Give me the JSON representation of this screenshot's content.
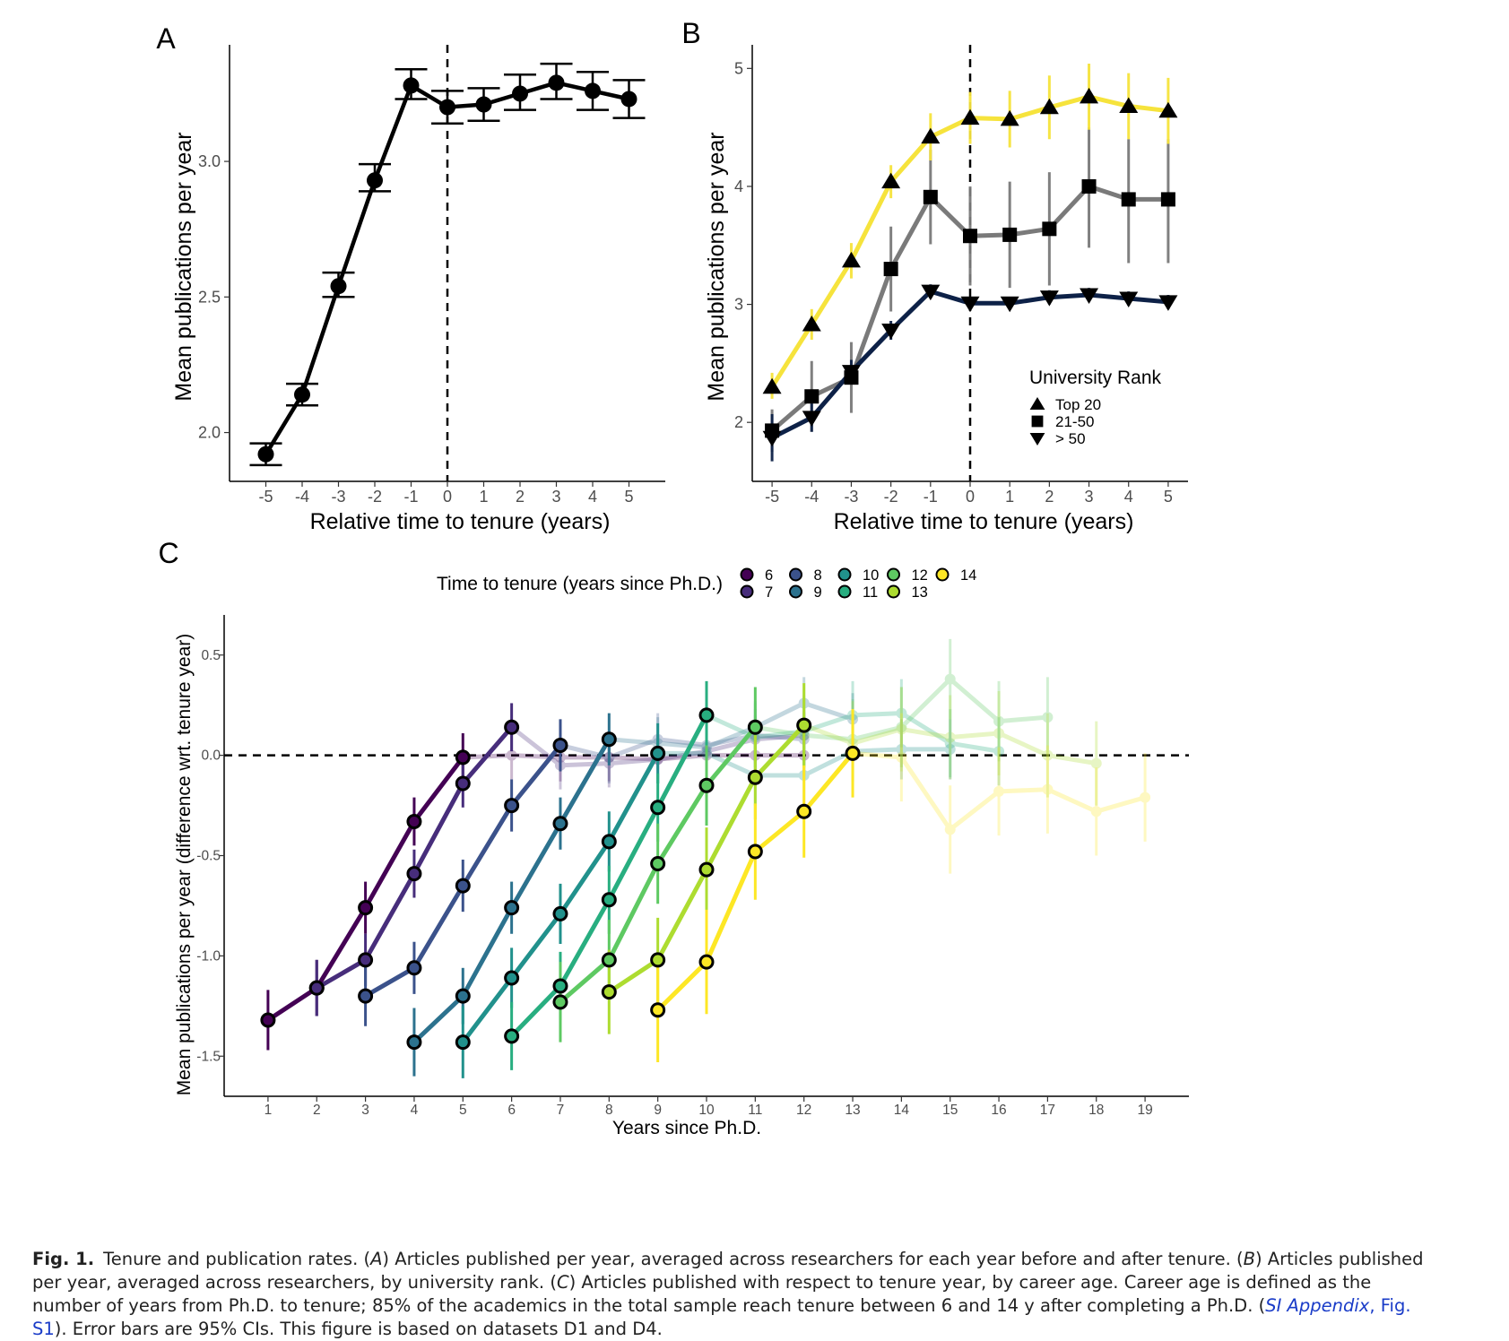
{
  "panels": {
    "A": {
      "label": "A",
      "xlabel": "Relative time to tenure (years)",
      "ylabel": "Mean publications per year",
      "xticks": [
        "-5",
        "-4",
        "-3",
        "-2",
        "-1",
        "0",
        "1",
        "2",
        "3",
        "4",
        "5"
      ],
      "yticks": [
        "2.0",
        "2.5",
        "3.0"
      ]
    },
    "B": {
      "label": "B",
      "xlabel": "Relative time to tenure (years)",
      "ylabel": "Mean publications per year",
      "xticks": [
        "-5",
        "-4",
        "-3",
        "-2",
        "-1",
        "0",
        "1",
        "2",
        "3",
        "4",
        "5"
      ],
      "yticks": [
        "2",
        "3",
        "4",
        "5"
      ],
      "legend_title": "University Rank",
      "legend_items": [
        "Top 20",
        "21-50",
        "> 50"
      ]
    },
    "C": {
      "label": "C",
      "xlabel": "Years since Ph.D.",
      "ylabel": "Mean publications per year (difference wrt. tenure year)",
      "xticks": [
        "1",
        "2",
        "3",
        "4",
        "5",
        "6",
        "7",
        "8",
        "9",
        "10",
        "11",
        "12",
        "13",
        "14",
        "15",
        "16",
        "17",
        "18",
        "19"
      ],
      "yticks": [
        "0.5",
        "0.0",
        "-0.5",
        "-1.0",
        "-1.5"
      ],
      "legend_title": "Time to tenure (years since Ph.D.)"
    }
  },
  "colors": {
    "black": "#000000",
    "top20": "#f6e33c",
    "rank21_50": "#7a7a7a",
    "rank_gt50": "#0d2147",
    "ttt": {
      "6": "#440154",
      "7": "#472d7b",
      "8": "#3b528b",
      "9": "#2c728e",
      "10": "#21918c",
      "11": "#28ae80",
      "12": "#5ec962",
      "13": "#addc30",
      "14": "#fde725"
    }
  },
  "chart_data": [
    {
      "panel": "A",
      "type": "line",
      "title": "",
      "xlabel": "Relative time to tenure (years)",
      "ylabel": "Mean publications per year",
      "xlim": [
        -6,
        6
      ],
      "ylim": [
        1.82,
        3.43
      ],
      "x": [
        -5,
        -4,
        -3,
        -2,
        -1,
        0,
        1,
        2,
        3,
        4,
        5
      ],
      "series": [
        {
          "name": "All",
          "values": [
            1.92,
            2.14,
            2.54,
            2.93,
            3.28,
            3.2,
            3.21,
            3.25,
            3.29,
            3.26,
            3.23
          ],
          "ci_low": [
            1.88,
            2.1,
            2.5,
            2.89,
            3.23,
            3.14,
            3.15,
            3.19,
            3.23,
            3.19,
            3.16
          ],
          "ci_high": [
            1.96,
            2.18,
            2.59,
            2.99,
            3.34,
            3.26,
            3.27,
            3.32,
            3.36,
            3.33,
            3.3
          ]
        }
      ],
      "vline": 0
    },
    {
      "panel": "B",
      "type": "line",
      "title": "",
      "xlabel": "Relative time to tenure (years)",
      "ylabel": "Mean publications per year",
      "xlim": [
        -5.5,
        5.5
      ],
      "ylim": [
        1.5,
        5.2
      ],
      "x": [
        -5,
        -4,
        -3,
        -2,
        -1,
        0,
        1,
        2,
        3,
        4,
        5
      ],
      "legend_title": "University Rank",
      "series": [
        {
          "name": "Top 20",
          "marker": "triangle-up",
          "values": [
            2.3,
            2.83,
            3.37,
            4.04,
            4.42,
            4.58,
            4.57,
            4.67,
            4.76,
            4.68,
            4.64
          ],
          "ci_low": [
            2.2,
            2.7,
            3.22,
            3.9,
            4.22,
            4.36,
            4.33,
            4.4,
            4.48,
            4.4,
            4.36
          ],
          "ci_high": [
            2.42,
            2.96,
            3.52,
            4.18,
            4.62,
            4.8,
            4.81,
            4.94,
            5.04,
            4.96,
            4.92
          ]
        },
        {
          "name": "21-50",
          "marker": "square",
          "values": [
            1.93,
            2.22,
            2.38,
            3.3,
            3.91,
            3.58,
            3.59,
            3.64,
            4.0,
            3.89,
            3.89
          ],
          "ci_low": [
            1.75,
            1.92,
            2.08,
            2.94,
            3.51,
            3.16,
            3.14,
            3.16,
            3.48,
            3.35,
            3.35
          ],
          "ci_high": [
            2.11,
            2.52,
            2.68,
            3.66,
            4.31,
            4.0,
            4.04,
            4.12,
            4.5,
            4.4,
            4.4
          ]
        },
        {
          "name": "> 50",
          "marker": "triangle-down",
          "values": [
            1.87,
            2.04,
            2.43,
            2.78,
            3.11,
            3.01,
            3.01,
            3.06,
            3.08,
            3.05,
            3.02
          ],
          "ci_low": [
            1.67,
            1.92,
            2.33,
            2.7,
            3.05,
            2.96,
            2.96,
            3.0,
            3.02,
            2.99,
            2.96
          ],
          "ci_high": [
            2.07,
            2.16,
            2.53,
            2.86,
            3.17,
            3.06,
            3.06,
            3.12,
            3.14,
            3.11,
            3.08
          ]
        }
      ],
      "vline": 0
    },
    {
      "panel": "C",
      "type": "line",
      "title": "",
      "xlabel": "Years since Ph.D.",
      "ylabel": "Mean publications per year (difference wrt. tenure year)",
      "xlim": [
        0.1,
        19.9
      ],
      "ylim": [
        -1.7,
        0.7
      ],
      "legend_title": "Time to tenure (years since Ph.D.)",
      "hline": 0,
      "series": [
        {
          "name": "6",
          "pre_x": [
            1,
            2,
            3,
            4,
            5
          ],
          "pre": [
            -1.32,
            -1.16,
            -0.76,
            -0.33,
            -0.01
          ],
          "ci": [
            0.15,
            0.14,
            0.13,
            0.12,
            0.12
          ],
          "post_x": [
            6,
            7,
            8,
            9,
            10,
            11,
            12
          ],
          "post": [
            0.0,
            -0.01,
            -0.01,
            -0.02,
            0.0,
            0.0,
            0.0
          ]
        },
        {
          "name": "7",
          "pre_x": [
            2,
            3,
            4,
            5,
            6
          ],
          "pre": [
            -1.16,
            -1.02,
            -0.59,
            -0.14,
            0.14
          ],
          "ci": [
            0.14,
            0.13,
            0.12,
            0.12,
            0.12
          ],
          "post_x": [
            7,
            8,
            9,
            10,
            11,
            12
          ],
          "post": [
            -0.05,
            -0.04,
            -0.02,
            0.02,
            0.08,
            0.1
          ]
        },
        {
          "name": "8",
          "pre_x": [
            3,
            4,
            5,
            6,
            7
          ],
          "pre": [
            -1.2,
            -1.06,
            -0.65,
            -0.25,
            0.05
          ],
          "ci": [
            0.15,
            0.13,
            0.13,
            0.13,
            0.13
          ],
          "post_x": [
            8,
            9,
            10,
            11,
            12
          ],
          "post": [
            -0.01,
            0.08,
            0.05,
            0.1,
            0.08
          ]
        },
        {
          "name": "9",
          "pre_x": [
            4,
            5,
            6,
            7,
            8
          ],
          "pre": [
            -1.43,
            -1.2,
            -0.76,
            -0.34,
            0.08
          ],
          "ci": [
            0.17,
            0.14,
            0.13,
            0.13,
            0.13
          ],
          "post_x": [
            9,
            10,
            11,
            12,
            13
          ],
          "post": [
            0.06,
            0.04,
            0.14,
            0.26,
            0.18
          ]
        },
        {
          "name": "10",
          "pre_x": [
            5,
            6,
            7,
            8,
            9
          ],
          "pre": [
            -1.43,
            -1.11,
            -0.79,
            -0.43,
            0.01
          ],
          "ci": [
            0.18,
            0.15,
            0.15,
            0.15,
            0.15
          ],
          "post_x": [
            10,
            11,
            12,
            13,
            14,
            15
          ],
          "post": [
            0.01,
            -0.1,
            -0.1,
            0.02,
            0.03,
            0.03
          ]
        },
        {
          "name": "11",
          "pre_x": [
            6,
            7,
            8,
            9,
            10
          ],
          "pre": [
            -1.4,
            -1.15,
            -0.72,
            -0.26,
            0.2
          ],
          "ci": [
            0.17,
            0.17,
            0.17,
            0.17,
            0.17
          ],
          "post_x": [
            11,
            12,
            13,
            14,
            15,
            16
          ],
          "post": [
            0.09,
            0.12,
            0.2,
            0.21,
            0.06,
            0.02
          ]
        },
        {
          "name": "12",
          "pre_x": [
            7,
            8,
            9,
            10,
            11
          ],
          "pre": [
            -1.23,
            -1.02,
            -0.54,
            -0.15,
            0.14
          ],
          "ci": [
            0.2,
            0.2,
            0.2,
            0.2,
            0.2
          ],
          "post_x": [
            12,
            13,
            14,
            15,
            16,
            17
          ],
          "post": [
            0.1,
            0.08,
            0.14,
            0.38,
            0.17,
            0.19
          ]
        },
        {
          "name": "13",
          "pre_x": [
            8,
            9,
            10,
            11,
            12
          ],
          "pre": [
            -1.18,
            -1.02,
            -0.57,
            -0.11,
            0.15
          ],
          "ci": [
            0.21,
            0.21,
            0.21,
            0.21,
            0.21
          ],
          "post_x": [
            13,
            14,
            15,
            16,
            17,
            18
          ],
          "post": [
            0.06,
            0.13,
            0.09,
            0.11,
            0.0,
            -0.04
          ]
        },
        {
          "name": "14",
          "pre_x": [
            9,
            10,
            11,
            12,
            13
          ],
          "pre": [
            -1.27,
            -1.03,
            -0.48,
            -0.28,
            0.01
          ],
          "ci": [
            0.26,
            0.26,
            0.24,
            0.23,
            0.22
          ],
          "post_x": [
            14,
            15,
            16,
            17,
            18,
            19
          ],
          "post": [
            -0.01,
            -0.37,
            -0.18,
            -0.17,
            -0.28,
            -0.21
          ]
        }
      ]
    }
  ],
  "caption": {
    "label": "Fig. 1.",
    "t1": "Tenure and publication rates. (",
    "a": "A",
    "t2": ") Articles published per year, averaged across researchers for each year before and after tenure. (",
    "b": "B",
    "t3": ") Articles published per year, averaged across researchers, by university rank. (",
    "c": "C",
    "t4": ") Articles published with respect to tenure year, by career age. Career age is defined as the number of years from Ph.D. to tenure; 85% of the academics in the total sample reach tenure between 6 and 14 y after completing a Ph.D. (",
    "link_si": "SI Appendix",
    "link_fig": ", Fig. S1",
    "t5": "). Error bars are 95% CIs. This figure is based on datasets D1 and D4."
  }
}
